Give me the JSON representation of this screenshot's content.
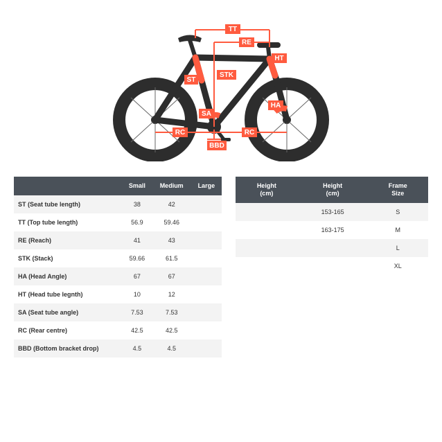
{
  "diagram": {
    "type": "bike-geometry-diagram",
    "background_color": "#ffffff",
    "bike_fill": "#2d2d2d",
    "tire_stroke": "#2d2d2d",
    "accent_color": "#ff5b3f",
    "label_bg": "#ff5b3f",
    "label_text": "#ffffff",
    "line_color": "#ff5b3f",
    "labels": [
      "TT",
      "RE",
      "HT",
      "STK",
      "ST",
      "SA",
      "HA",
      "RC",
      "BBD"
    ]
  },
  "geometry_table": {
    "header_bg": "#4a5159",
    "header_text": "#ffffff",
    "row_odd": "#f3f3f3",
    "row_even": "#ffffff",
    "columns": [
      "",
      "Small",
      "Medium",
      "Large"
    ],
    "rows": [
      [
        "ST (Seat tube length)",
        "38",
        "42",
        ""
      ],
      [
        "TT (Top tube length)",
        "56.9",
        "59.46",
        ""
      ],
      [
        "RE (Reach)",
        "41",
        "43",
        ""
      ],
      [
        "STK (Stack)",
        "59.66",
        "61.5",
        ""
      ],
      [
        "HA (Head Angle)",
        "67",
        "67",
        ""
      ],
      [
        "HT (Head tube legnth)",
        "10",
        "12",
        ""
      ],
      [
        "SA (Seat tube angle)",
        "7.53",
        "7.53",
        ""
      ],
      [
        "RC (Rear centre)",
        "42.5",
        "42.5",
        ""
      ],
      [
        "BBD (Bottom bracket drop)",
        "4.5",
        "4.5",
        ""
      ]
    ]
  },
  "size_table": {
    "header_bg": "#4a5159",
    "header_text": "#ffffff",
    "row_odd": "#f3f3f3",
    "row_even": "#ffffff",
    "columns": [
      "Height\n(cm)",
      "Height\n(cm)",
      "Frame\nSize"
    ],
    "rows": [
      [
        "",
        "153-165",
        "S"
      ],
      [
        "",
        "163-175",
        "M"
      ],
      [
        "",
        "",
        "L"
      ],
      [
        "",
        "",
        "XL"
      ]
    ]
  }
}
